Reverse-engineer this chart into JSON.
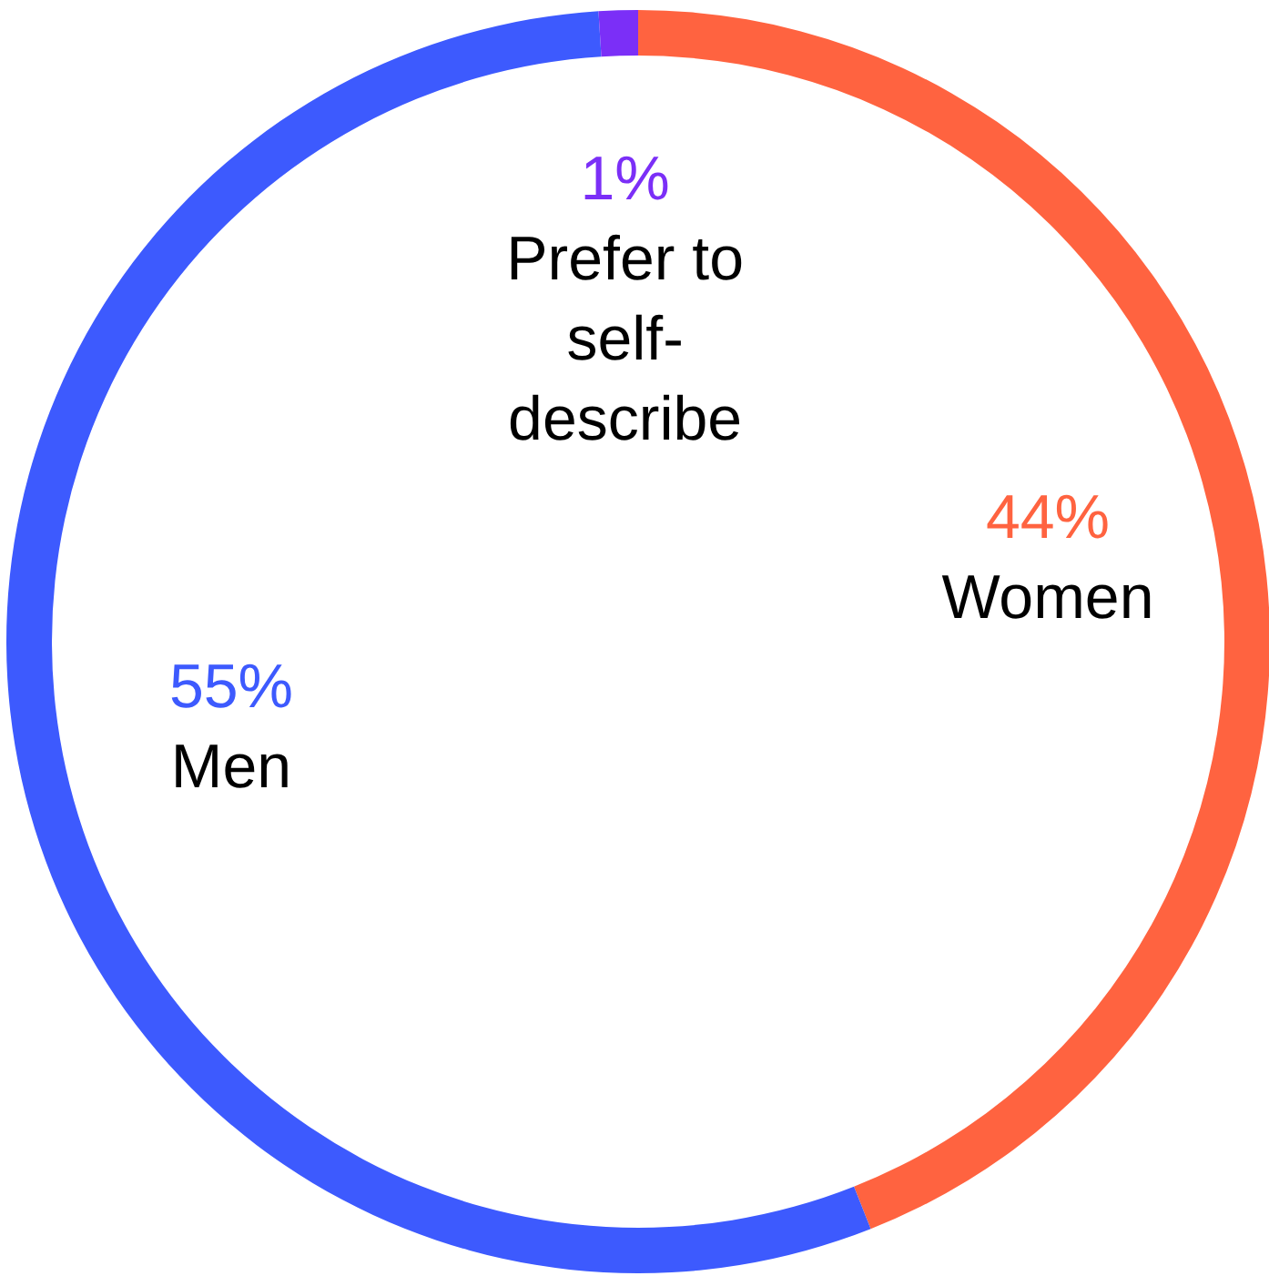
{
  "chart_data": {
    "type": "donut",
    "categories": [
      "Women",
      "Men",
      "Prefer to self-describe"
    ],
    "values": [
      44,
      55,
      1
    ],
    "colors": [
      "#ff6340",
      "#3d5afe",
      "#7b2ff7"
    ],
    "value_labels": [
      "44%",
      "55%",
      "1%"
    ]
  }
}
